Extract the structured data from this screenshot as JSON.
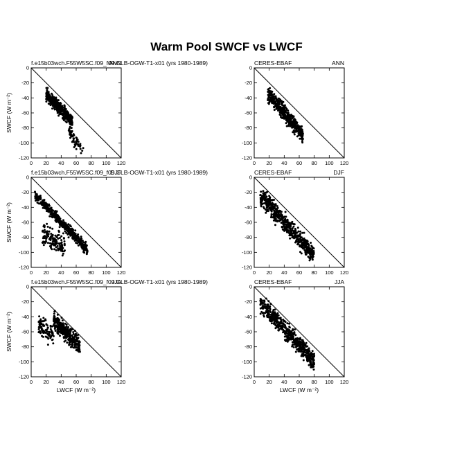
{
  "figure": {
    "title": "Warm Pool SWCF vs LWCF"
  },
  "chart_data": [
    {
      "type": "scatter",
      "panel": "model-ann",
      "title_left": "f.e15b03wch.F55W5SC.f09_f09.CLB-OGW-T1-x01 (yrs 1980-1989)",
      "title_right": "ANN",
      "xlabel": "",
      "ylabel": "SWCF (W m⁻²)",
      "xlim": [
        0,
        120
      ],
      "ylim": [
        -120,
        0
      ],
      "xticks": [
        "0",
        "20",
        "40",
        "60",
        "80",
        "100",
        "120"
      ],
      "yticks": [
        "0",
        "-20",
        "-40",
        "-60",
        "-80",
        "-100",
        "-120"
      ],
      "reference_line": {
        "x": [
          0,
          120
        ],
        "y": [
          0,
          -120
        ]
      },
      "clusters": [
        {
          "count": 420,
          "x_range": [
            20,
            55
          ],
          "slope": -1.05,
          "offset": -14,
          "spread": 8,
          "seed": 11
        },
        {
          "count": 60,
          "x_range": [
            50,
            70
          ],
          "slope": -1.6,
          "offset": -2,
          "spread": 10,
          "seed": 12
        }
      ]
    },
    {
      "type": "scatter",
      "panel": "obs-ann",
      "title_left": "CERES-EBAF",
      "title_right": "ANN",
      "xlabel": "",
      "ylabel": "",
      "xlim": [
        0,
        120
      ],
      "ylim": [
        -120,
        0
      ],
      "xticks": [
        "0",
        "20",
        "40",
        "60",
        "80",
        "100",
        "120"
      ],
      "yticks": [
        "0",
        "-20",
        "-40",
        "-60",
        "-80",
        "-100",
        "-120"
      ],
      "reference_line": {
        "x": [
          0,
          120
        ],
        "y": [
          0,
          -120
        ]
      },
      "clusters": [
        {
          "count": 480,
          "x_range": [
            18,
            65
          ],
          "slope": -1.15,
          "offset": -14,
          "spread": 10,
          "seed": 21
        }
      ]
    },
    {
      "type": "scatter",
      "panel": "model-djf",
      "title_left": "f.e15b03wch.F55W5SC.f09_f09.CLB-OGW-T1-x01 (yrs 1980-1989)",
      "title_right": "DJF",
      "xlabel": "",
      "ylabel": "SWCF (W m⁻²)",
      "xlim": [
        0,
        120
      ],
      "ylim": [
        -120,
        0
      ],
      "xticks": [
        "0",
        "20",
        "40",
        "60",
        "80",
        "100",
        "120"
      ],
      "yticks": [
        "0",
        "-20",
        "-40",
        "-60",
        "-80",
        "-100",
        "-120"
      ],
      "reference_line": {
        "x": [
          0,
          120
        ],
        "y": [
          0,
          -120
        ]
      },
      "clusters": [
        {
          "count": 460,
          "x_range": [
            5,
            75
          ],
          "slope": -1.05,
          "offset": -18,
          "spread": 7,
          "seed": 31
        },
        {
          "count": 140,
          "x_range": [
            15,
            45
          ],
          "slope": -0.6,
          "offset": -65,
          "spread": 14,
          "seed": 32
        }
      ]
    },
    {
      "type": "scatter",
      "panel": "obs-djf",
      "title_left": "CERES-EBAF",
      "title_right": "DJF",
      "xlabel": "",
      "ylabel": "",
      "xlim": [
        0,
        120
      ],
      "ylim": [
        -120,
        0
      ],
      "xticks": [
        "0",
        "20",
        "40",
        "60",
        "80",
        "100",
        "120"
      ],
      "yticks": [
        "0",
        "-20",
        "-40",
        "-60",
        "-80",
        "-100",
        "-120"
      ],
      "reference_line": {
        "x": [
          0,
          120
        ],
        "y": [
          0,
          -120
        ]
      },
      "clusters": [
        {
          "count": 560,
          "x_range": [
            8,
            80
          ],
          "slope": -1.1,
          "offset": -16,
          "spread": 12,
          "seed": 41
        }
      ]
    },
    {
      "type": "scatter",
      "panel": "model-jja",
      "title_left": "f.e15b03wch.F55W5SC.f09_f09.CLB-OGW-T1-x01 (yrs 1980-1989)",
      "title_right": "JJA",
      "xlabel": "LWCF (W m⁻²)",
      "ylabel": "SWCF (W m⁻²)",
      "xlim": [
        0,
        120
      ],
      "ylim": [
        -120,
        0
      ],
      "xticks": [
        "0",
        "20",
        "40",
        "60",
        "80",
        "100",
        "120"
      ],
      "yticks": [
        "0",
        "-20",
        "-40",
        "-60",
        "-80",
        "-100",
        "-120"
      ],
      "reference_line": {
        "x": [
          0,
          120
        ],
        "y": [
          0,
          -120
        ]
      },
      "clusters": [
        {
          "count": 380,
          "x_range": [
            30,
            65
          ],
          "slope": -1.0,
          "offset": -15,
          "spread": 11,
          "seed": 51
        },
        {
          "count": 90,
          "x_range": [
            10,
            30
          ],
          "slope": -0.9,
          "offset": -40,
          "spread": 14,
          "seed": 52
        }
      ]
    },
    {
      "type": "scatter",
      "panel": "obs-jja",
      "title_left": "CERES-EBAF",
      "title_right": "JJA",
      "xlabel": "LWCF (W m⁻²)",
      "ylabel": "",
      "xlim": [
        0,
        120
      ],
      "ylim": [
        -120,
        0
      ],
      "xticks": [
        "0",
        "20",
        "40",
        "60",
        "80",
        "100",
        "120"
      ],
      "yticks": [
        "0",
        "-20",
        "-40",
        "-60",
        "-80",
        "-100",
        "-120"
      ],
      "reference_line": {
        "x": [
          0,
          120
        ],
        "y": [
          0,
          -120
        ]
      },
      "clusters": [
        {
          "count": 540,
          "x_range": [
            8,
            80
          ],
          "slope": -1.1,
          "offset": -12,
          "spread": 12,
          "seed": 61
        }
      ]
    }
  ]
}
